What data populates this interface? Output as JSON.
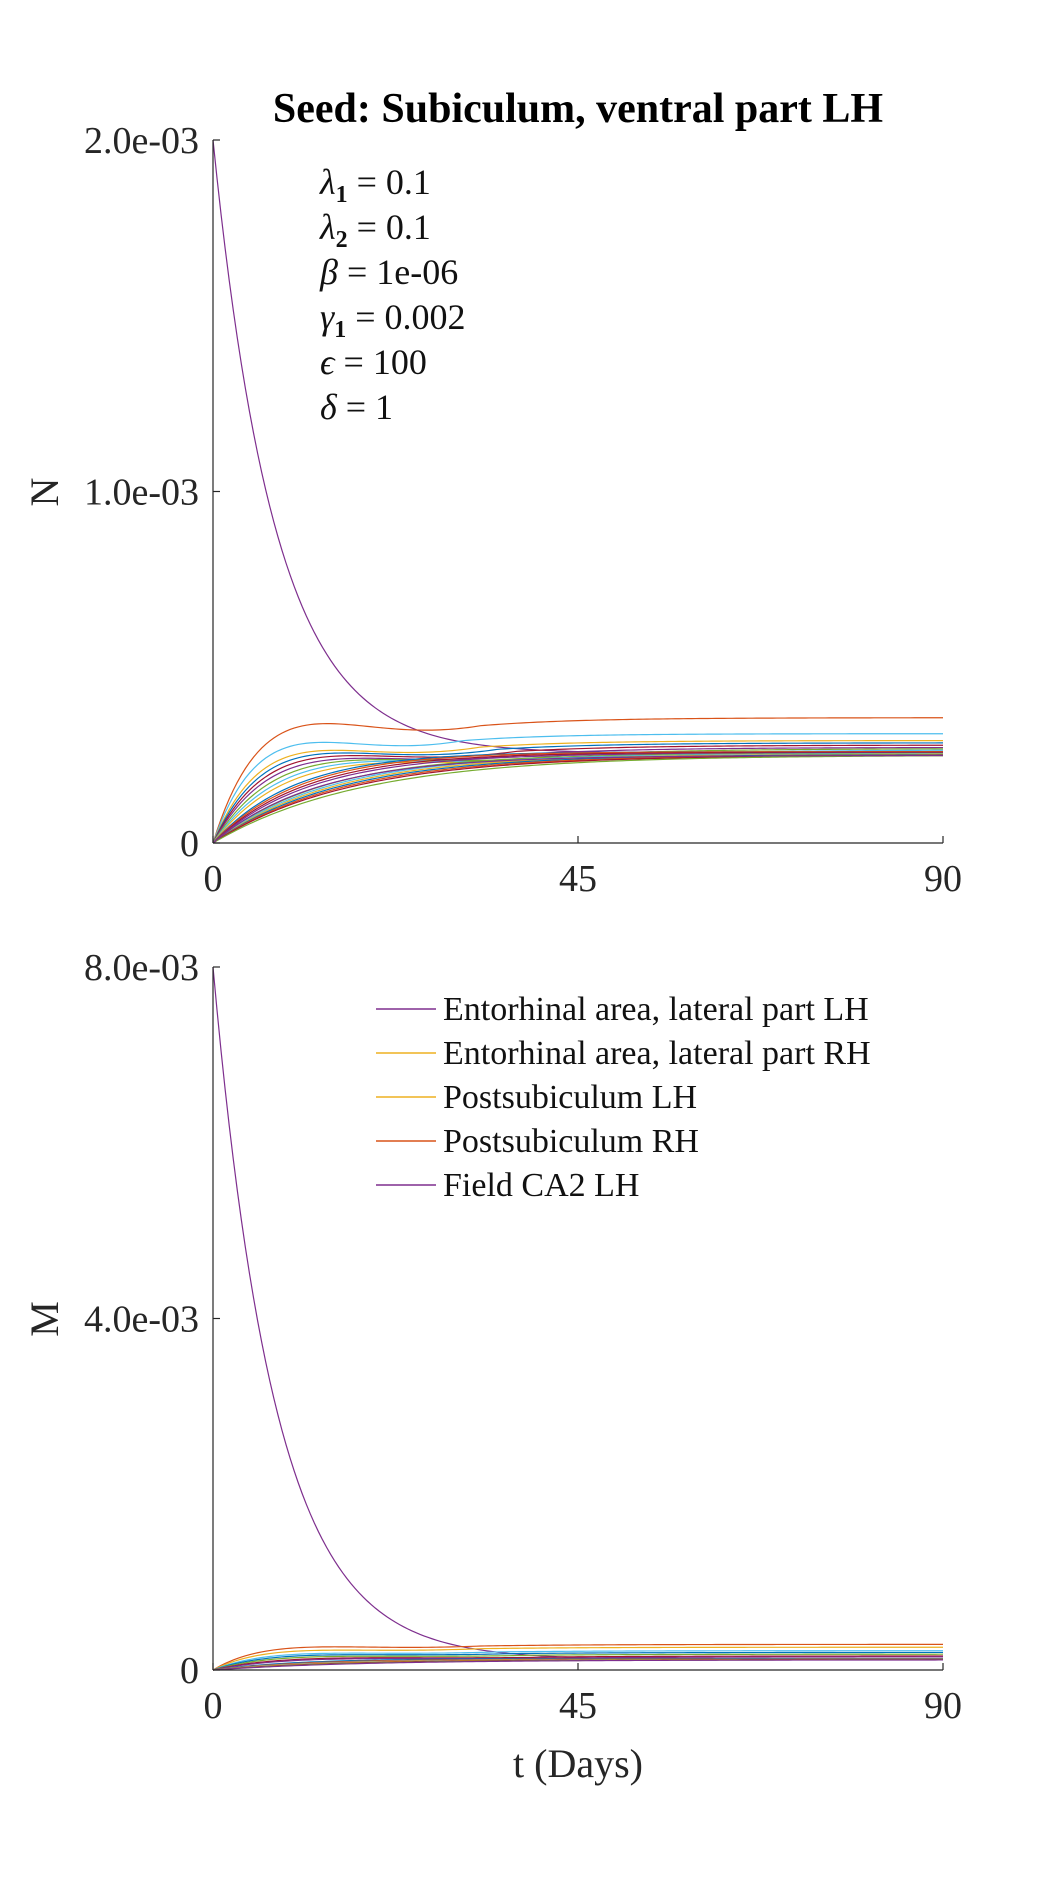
{
  "title": "Seed: Subiculum, ventral part LH",
  "params": [
    {
      "sym": "λ",
      "sub": "1",
      "value": "0.1"
    },
    {
      "sym": "λ",
      "sub": "2",
      "value": "0.1"
    },
    {
      "sym": "β",
      "sub": "",
      "value": "1e-06"
    },
    {
      "sym": "γ",
      "sub": "1",
      "value": "0.002"
    },
    {
      "sym": "ϵ",
      "sub": "",
      "value": "100"
    },
    {
      "sym": "δ",
      "sub": "",
      "value": "1"
    }
  ],
  "chart_data": [
    {
      "type": "line",
      "ylabel": "N",
      "xlabel": "",
      "xlim": [
        0,
        90
      ],
      "ylim": [
        0,
        0.002
      ],
      "xticks": [
        0,
        45,
        90
      ],
      "xtick_labels": [
        "0",
        "45",
        "90"
      ],
      "yticks": [
        0,
        0.001,
        0.002
      ],
      "ytick_labels": [
        "0",
        "1.0e-03",
        "2.0e-03"
      ],
      "series": [
        {
          "color": "#7E2F8E",
          "y0": 0.002,
          "peak": 0.000255,
          "tpeak": 90,
          "kind": "decay"
        },
        {
          "color": "#D95319",
          "y0": 0,
          "peak": 0.00041,
          "tpeak": 15,
          "kind": "hump"
        },
        {
          "color": "#4DBEEE",
          "y0": 0,
          "peak": 0.00034,
          "tpeak": 14,
          "kind": "hump"
        },
        {
          "color": "#EDB120",
          "y0": 0,
          "peak": 0.00031,
          "tpeak": 15,
          "kind": "hump"
        },
        {
          "color": "#0072BD",
          "y0": 0,
          "peak": 0.0003,
          "tpeak": 16,
          "kind": "hump"
        },
        {
          "color": "#A2142F",
          "y0": 0,
          "peak": 0.00029,
          "tpeak": 17,
          "kind": "hump"
        },
        {
          "color": "#7E2F8E",
          "y0": 0,
          "peak": 0.00028,
          "tpeak": 18,
          "kind": "hump"
        },
        {
          "color": "#77AC30",
          "y0": 0,
          "peak": 0.000275,
          "tpeak": 20,
          "kind": "hump"
        },
        {
          "color": "#4DBEEE",
          "y0": 0,
          "peak": 0.00027,
          "tpeak": 22,
          "kind": "hump"
        },
        {
          "color": "#EDB120",
          "y0": 0,
          "peak": 0.000265,
          "tpeak": 24,
          "kind": "hump"
        },
        {
          "color": "#0072BD",
          "y0": 0,
          "peak": 0.00026,
          "tpeak": 30,
          "kind": "rise"
        },
        {
          "color": "#D95319",
          "y0": 0,
          "peak": 0.00026,
          "tpeak": 32,
          "kind": "rise"
        },
        {
          "color": "#A2142F",
          "y0": 0,
          "peak": 0.000258,
          "tpeak": 34,
          "kind": "rise"
        },
        {
          "color": "#7E2F8E",
          "y0": 0,
          "peak": 0.000256,
          "tpeak": 36,
          "kind": "rise"
        },
        {
          "color": "#77AC30",
          "y0": 0,
          "peak": 0.000255,
          "tpeak": 40,
          "kind": "rise"
        },
        {
          "color": "#4DBEEE",
          "y0": 0,
          "peak": 0.000254,
          "tpeak": 42,
          "kind": "rise"
        },
        {
          "color": "#EDB120",
          "y0": 0,
          "peak": 0.000253,
          "tpeak": 44,
          "kind": "rise"
        },
        {
          "color": "#0072BD",
          "y0": 0,
          "peak": 0.000252,
          "tpeak": 46,
          "kind": "rise"
        },
        {
          "color": "#D95319",
          "y0": 0,
          "peak": 0.000251,
          "tpeak": 48,
          "kind": "rise"
        },
        {
          "color": "#A2142F",
          "y0": 0,
          "peak": 0.00025,
          "tpeak": 50,
          "kind": "rise"
        },
        {
          "color": "#77AC30",
          "y0": 0,
          "peak": 0.00025,
          "tpeak": 55,
          "kind": "rise"
        },
        {
          "color": "#7E2F8E",
          "y0": 0,
          "peak": 0.000249,
          "tpeak": 38,
          "kind": "rise"
        }
      ]
    },
    {
      "type": "line",
      "ylabel": "M",
      "xlabel": "t (Days)",
      "xlim": [
        0,
        90
      ],
      "ylim": [
        0,
        0.008
      ],
      "xticks": [
        0,
        45,
        90
      ],
      "xtick_labels": [
        "0",
        "45",
        "90"
      ],
      "yticks": [
        0,
        0.004,
        0.008
      ],
      "ytick_labels": [
        "0",
        "4.0e-03",
        "8.0e-03"
      ],
      "legend": {
        "placement": "top-right",
        "entries": [
          {
            "name": "Entorhinal area, lateral part LH",
            "color": "#7E2F8E"
          },
          {
            "name": "Entorhinal area, lateral part RH",
            "color": "#EDB120"
          },
          {
            "name": "Postsubiculum LH",
            "color": "#EDB120"
          },
          {
            "name": "Postsubiculum RH",
            "color": "#D95319"
          },
          {
            "name": "Field CA2 LH",
            "color": "#7E2F8E"
          }
        ]
      },
      "series": [
        {
          "color": "#7E2F8E",
          "y0": 0.008,
          "peak": 0.00012,
          "tpeak": 90,
          "kind": "decay"
        },
        {
          "color": "#D95319",
          "y0": 0,
          "peak": 0.00031,
          "tpeak": 15,
          "kind": "hump"
        },
        {
          "color": "#EDB120",
          "y0": 0,
          "peak": 0.00026,
          "tpeak": 15,
          "kind": "hump"
        },
        {
          "color": "#4DBEEE",
          "y0": 0,
          "peak": 0.00022,
          "tpeak": 16,
          "kind": "hump"
        },
        {
          "color": "#0072BD",
          "y0": 0,
          "peak": 0.0002,
          "tpeak": 17,
          "kind": "hump"
        },
        {
          "color": "#77AC30",
          "y0": 0,
          "peak": 0.00018,
          "tpeak": 18,
          "kind": "hump"
        },
        {
          "color": "#A2142F",
          "y0": 0,
          "peak": 0.00016,
          "tpeak": 20,
          "kind": "hump"
        },
        {
          "color": "#7E2F8E",
          "y0": 0,
          "peak": 0.00015,
          "tpeak": 22,
          "kind": "hump"
        },
        {
          "color": "#0072BD",
          "y0": 0,
          "peak": 0.00013,
          "tpeak": 30,
          "kind": "rise"
        },
        {
          "color": "#D95319",
          "y0": 0,
          "peak": 0.000125,
          "tpeak": 34,
          "kind": "rise"
        },
        {
          "color": "#4DBEEE",
          "y0": 0,
          "peak": 0.00012,
          "tpeak": 38,
          "kind": "rise"
        },
        {
          "color": "#EDB120",
          "y0": 0,
          "peak": 0.00012,
          "tpeak": 42,
          "kind": "rise"
        },
        {
          "color": "#A2142F",
          "y0": 0,
          "peak": 0.000118,
          "tpeak": 46,
          "kind": "rise"
        },
        {
          "color": "#77AC30",
          "y0": 0,
          "peak": 0.000116,
          "tpeak": 50,
          "kind": "rise"
        },
        {
          "color": "#7E2F8E",
          "y0": 0,
          "peak": 0.000115,
          "tpeak": 54,
          "kind": "rise"
        }
      ]
    }
  ]
}
